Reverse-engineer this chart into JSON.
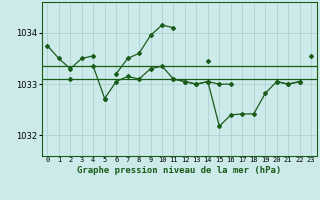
{
  "title": "Graphe pression niveau de la mer (hPa)",
  "background_color": "#cceaea",
  "grid_color": "#aacccc",
  "line_color": "#1a5c1a",
  "x_labels": [
    "0",
    "1",
    "2",
    "3",
    "4",
    "5",
    "6",
    "7",
    "8",
    "9",
    "10",
    "11",
    "12",
    "13",
    "14",
    "15",
    "16",
    "17",
    "18",
    "19",
    "20",
    "21",
    "22",
    "23"
  ],
  "ylim": [
    1031.6,
    1034.6
  ],
  "yticks": [
    1032,
    1033,
    1034
  ],
  "series_high": [
    1033.75,
    1033.5,
    1033.3,
    1033.5,
    1033.55,
    null,
    1033.2,
    1033.5,
    1033.6,
    1033.95,
    1034.15,
    1034.1,
    null,
    null,
    1033.45,
    null,
    null,
    null,
    null,
    null,
    null,
    null,
    null,
    1033.55
  ],
  "series_mid": [
    null,
    null,
    1033.1,
    null,
    1033.35,
    1032.72,
    1033.05,
    1033.15,
    1033.1,
    1033.3,
    1033.35,
    1033.1,
    1033.05,
    1033.0,
    1033.05,
    1033.0,
    1033.0,
    null,
    null,
    null,
    1033.05,
    1033.0,
    1033.05,
    null
  ],
  "series_low": [
    null,
    null,
    null,
    null,
    null,
    1032.72,
    null,
    null,
    null,
    null,
    null,
    1033.1,
    1033.05,
    1033.0,
    1033.05,
    1032.18,
    1032.4,
    1032.42,
    1032.42,
    1032.82,
    1033.05,
    1033.0,
    1033.05,
    null
  ],
  "flat_line1": 1033.35,
  "flat_line2": 1033.1
}
